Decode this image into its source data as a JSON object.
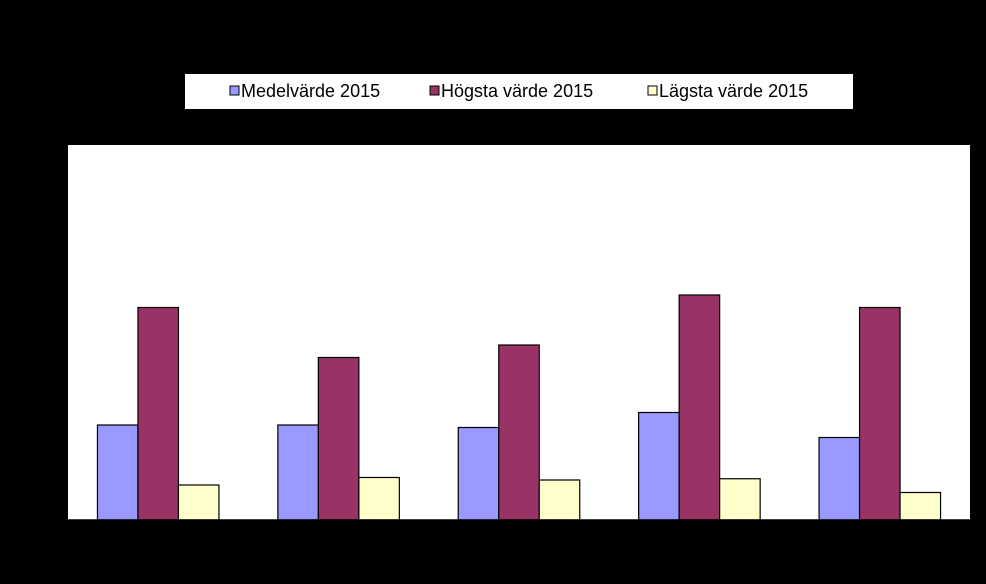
{
  "chart_data": {
    "type": "bar",
    "categories": [
      null,
      null,
      null,
      null,
      null
    ],
    "series": [
      {
        "name": "Medelvärde 2015",
        "color": "#9999ff",
        "values": [
          7.6,
          7.6,
          7.4,
          8.6,
          6.6
        ]
      },
      {
        "name": "Högsta värde 2015",
        "color": "#993366",
        "values": [
          17,
          13,
          14,
          18,
          17
        ]
      },
      {
        "name": "Lägsta värde 2015",
        "color": "#ffffcc",
        "values": [
          2.8,
          3.4,
          3.2,
          3.3,
          2.2
        ]
      }
    ],
    "ylim": [
      0,
      30
    ]
  }
}
